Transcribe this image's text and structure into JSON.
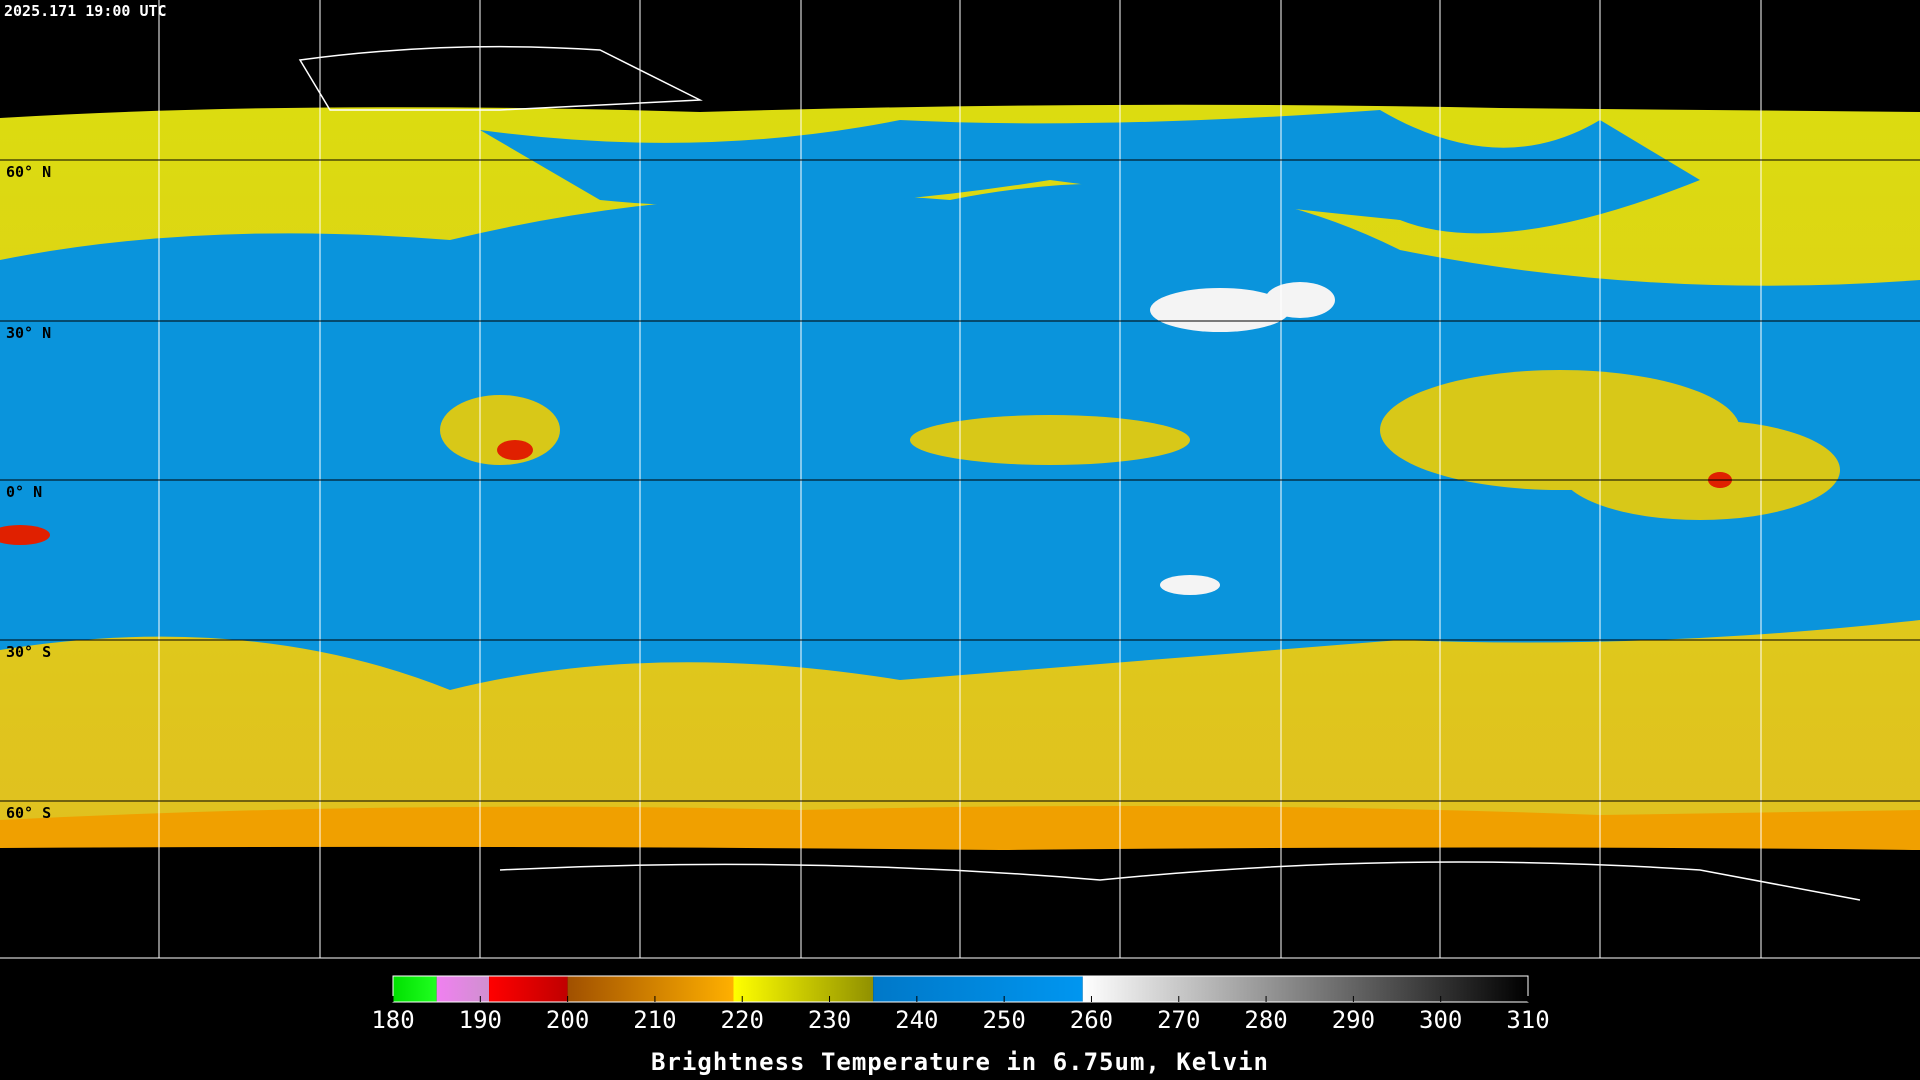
{
  "timestamp": "2025.171 19:00 UTC",
  "latitude_labels": [
    "60° N",
    "30° N",
    "0° N",
    "30° S",
    "60° S"
  ],
  "colorbar": {
    "label": "Brightness Temperature in 6.75um, Kelvin",
    "range": [
      180,
      310
    ],
    "ticks": [
      180,
      190,
      200,
      210,
      220,
      230,
      240,
      250,
      260,
      270,
      280,
      290,
      300,
      310
    ],
    "segments": [
      {
        "from": 180,
        "to": 185,
        "colors": [
          "#00e000",
          "#20ff20"
        ]
      },
      {
        "from": 185,
        "to": 191,
        "colors": [
          "#f080f0",
          "#d090d0"
        ]
      },
      {
        "from": 191,
        "to": 200,
        "colors": [
          "#ff0000",
          "#c00000"
        ]
      },
      {
        "from": 200,
        "to": 219,
        "colors": [
          "#a05000",
          "#ffb000"
        ]
      },
      {
        "from": 219,
        "to": 235,
        "colors": [
          "#ffff00",
          "#909000"
        ]
      },
      {
        "from": 235,
        "to": 259,
        "colors": [
          "#0078c8",
          "#0096f0"
        ]
      },
      {
        "from": 259,
        "to": 310,
        "colors": [
          "#ffffff",
          "#000000"
        ]
      }
    ]
  }
}
